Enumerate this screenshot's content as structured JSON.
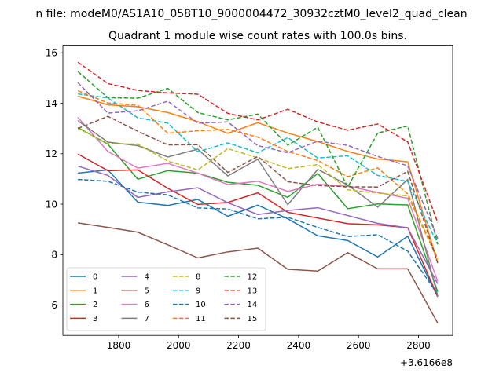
{
  "suptitle": "n file: modeM0/AS1A10_058T10_9000004472_30932cztM0_level2_quad_clean",
  "chart_data": {
    "type": "line",
    "title": "Quadrant 1 module wise count rates with 100.0s bins.",
    "xlabel": "",
    "ylabel": "",
    "x_offset_label": "+3.6166e8",
    "xlim": [
      1614,
      2914
    ],
    "ylim": [
      4.8,
      16.3
    ],
    "xticks": [
      1800,
      2000,
      2200,
      2400,
      2600,
      2800
    ],
    "yticks": [
      6,
      8,
      10,
      12,
      14,
      16
    ],
    "legend_loc": "lower-left",
    "legend_columns": 4,
    "x": [
      1664,
      1764,
      1864,
      1964,
      2064,
      2164,
      2264,
      2364,
      2464,
      2564,
      2664,
      2764,
      2864
    ],
    "series": [
      {
        "name": "0",
        "color": "#1f77b4",
        "style": "solid",
        "values": [
          11.23,
          11.36,
          10.08,
          9.95,
          10.19,
          9.52,
          9.96,
          9.42,
          8.75,
          8.56,
          7.91,
          8.73,
          6.33
        ]
      },
      {
        "name": "1",
        "color": "#ff7f0e",
        "style": "solid",
        "values": [
          14.28,
          13.94,
          13.86,
          13.63,
          13.27,
          12.81,
          13.23,
          12.82,
          12.48,
          12.09,
          11.79,
          11.68,
          7.67
        ]
      },
      {
        "name": "2",
        "color": "#2ca02c",
        "style": "solid",
        "values": [
          13.04,
          12.38,
          10.99,
          11.33,
          11.23,
          10.87,
          10.75,
          10.27,
          11.22,
          9.82,
          10.01,
          9.97,
          6.53
        ]
      },
      {
        "name": "3",
        "color": "#d62728",
        "style": "solid",
        "values": [
          11.99,
          11.33,
          11.36,
          10.63,
          9.99,
          10.07,
          10.45,
          9.68,
          9.45,
          9.23,
          9.18,
          9.07,
          6.33
        ]
      },
      {
        "name": "4",
        "color": "#9467bd",
        "style": "solid",
        "values": [
          11.51,
          11.14,
          10.27,
          10.49,
          10.65,
          10.06,
          9.59,
          9.75,
          9.86,
          9.55,
          9.24,
          9.06,
          6.85
        ]
      },
      {
        "name": "5",
        "color": "#8c564b",
        "style": "solid",
        "values": [
          9.26,
          9.08,
          8.89,
          8.39,
          7.87,
          8.11,
          8.26,
          7.42,
          7.35,
          8.08,
          7.44,
          7.44,
          5.29
        ]
      },
      {
        "name": "6",
        "color": "#e377c2",
        "style": "solid",
        "values": [
          13.44,
          12.09,
          11.43,
          11.62,
          11.23,
          10.78,
          10.91,
          10.51,
          10.79,
          10.71,
          10.47,
          10.23,
          6.95
        ]
      },
      {
        "name": "7",
        "color": "#7f7f7f",
        "style": "solid",
        "values": [
          13.31,
          12.46,
          12.32,
          11.87,
          12.18,
          11.12,
          11.78,
          9.98,
          11.38,
          10.76,
          9.88,
          10.98,
          6.35
        ]
      },
      {
        "name": "8",
        "color": "#bcbd22",
        "style": "dashed",
        "values": [
          13.01,
          12.4,
          12.38,
          11.71,
          11.36,
          12.2,
          11.84,
          11.41,
          11.57,
          10.57,
          10.44,
          10.33,
          7.82
        ]
      },
      {
        "name": "9",
        "color": "#17becf",
        "style": "dashed",
        "values": [
          14.37,
          14.21,
          13.42,
          13.21,
          12.08,
          12.43,
          12.04,
          12.64,
          11.83,
          11.92,
          11.14,
          10.9,
          8.41
        ]
      },
      {
        "name": "10",
        "color": "#1f77b4",
        "style": "dashed",
        "values": [
          10.98,
          10.91,
          10.48,
          10.37,
          9.85,
          9.81,
          9.42,
          9.48,
          9.08,
          8.72,
          8.79,
          8.14,
          6.43
        ]
      },
      {
        "name": "11",
        "color": "#ff7f0e",
        "style": "dashed",
        "values": [
          14.5,
          14.01,
          13.92,
          12.81,
          12.91,
          12.96,
          12.66,
          12.09,
          11.73,
          11.09,
          11.44,
          10.41,
          7.86
        ]
      },
      {
        "name": "12",
        "color": "#2ca02c",
        "style": "dashed",
        "values": [
          15.26,
          14.22,
          14.2,
          14.59,
          13.63,
          13.34,
          13.57,
          12.34,
          13.05,
          10.68,
          12.82,
          13.1,
          8.41
        ]
      },
      {
        "name": "13",
        "color": "#d62728",
        "style": "dashed",
        "values": [
          15.63,
          14.78,
          14.51,
          14.41,
          14.36,
          13.6,
          13.34,
          13.76,
          13.26,
          12.93,
          13.18,
          12.47,
          9.28
        ]
      },
      {
        "name": "14",
        "color": "#9467bd",
        "style": "dashed",
        "values": [
          14.82,
          13.61,
          13.7,
          14.08,
          13.21,
          13.26,
          12.32,
          12.04,
          12.5,
          12.33,
          11.89,
          11.52,
          8.64
        ]
      },
      {
        "name": "15",
        "color": "#8c564b",
        "style": "dashed",
        "values": [
          13.0,
          13.48,
          12.89,
          12.35,
          12.36,
          11.26,
          11.89,
          10.89,
          10.74,
          10.69,
          10.68,
          11.3,
          7.67
        ]
      }
    ]
  }
}
